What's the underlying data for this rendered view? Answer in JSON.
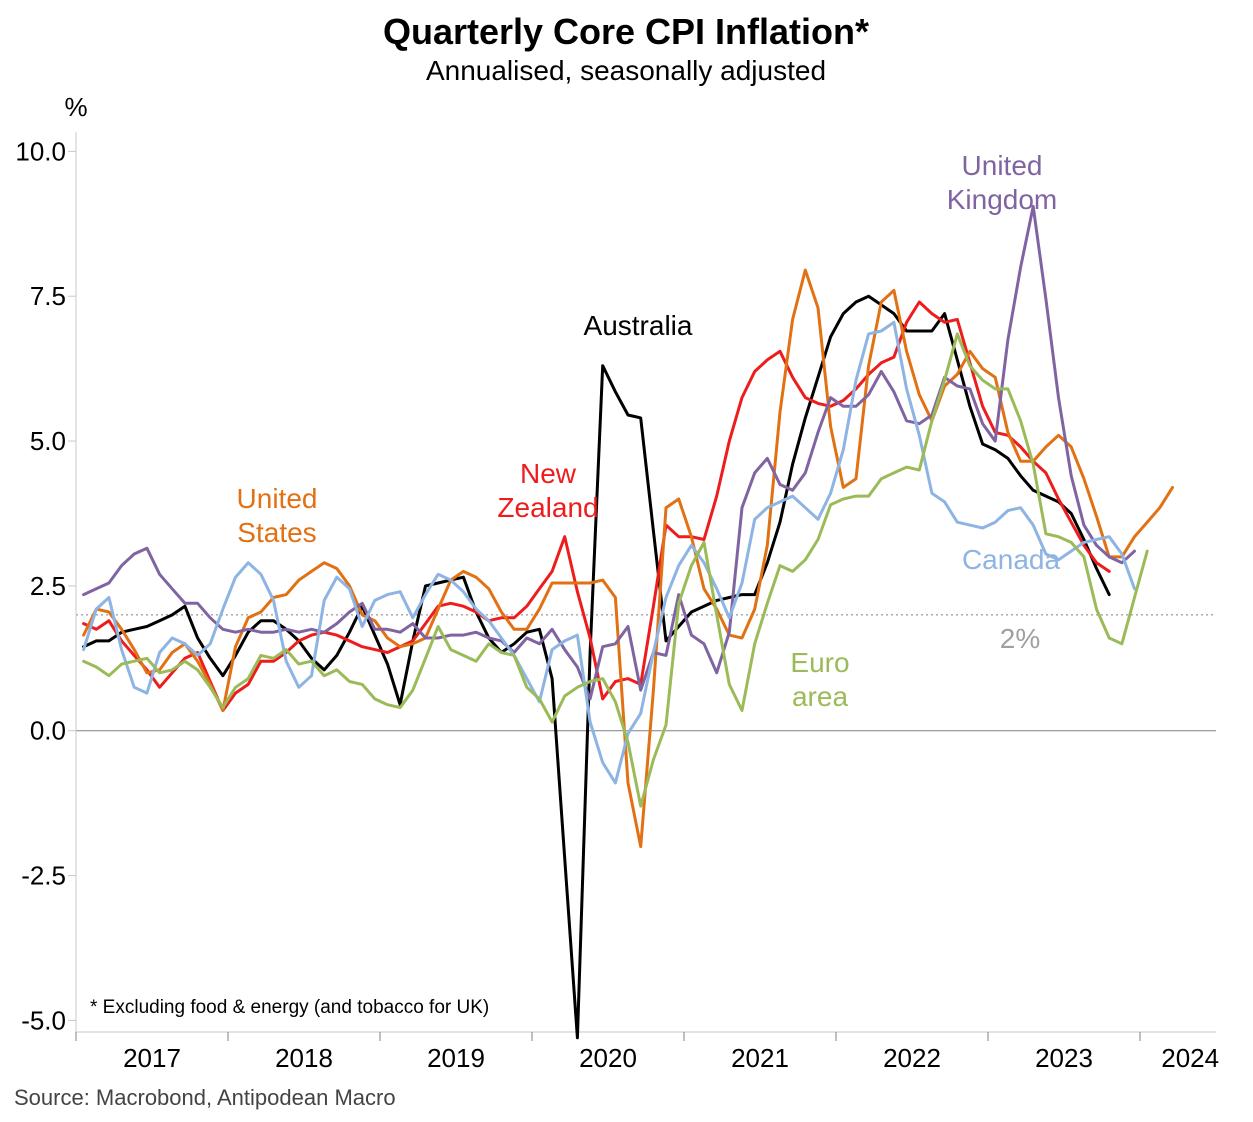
{
  "chart_data": {
    "type": "line",
    "title": "Quarterly Core CPI Inflation*",
    "subtitle": "Annualised, seasonally adjusted",
    "ylabel": "%",
    "ylim": [
      -5.2,
      10.3
    ],
    "yticks": [
      10.0,
      7.5,
      5.0,
      2.5,
      0.0,
      -2.5,
      -5.0
    ],
    "ytick_labels": [
      "10.0",
      "7.5",
      "5.0",
      "2.5",
      "0.0",
      "-2.5",
      "-5.0"
    ],
    "xlim": [
      2016.5,
      2024.0
    ],
    "x_tick_labels": [
      "2017",
      "2018",
      "2019",
      "2020",
      "2021",
      "2022",
      "2023",
      "2024"
    ],
    "x_tick_label_positions": [
      2017.0,
      2018.0,
      2019.0,
      2020.0,
      2021.0,
      2022.0,
      2023.0,
      2023.83
    ],
    "x_year_boundaries": [
      2016.5,
      2017.5,
      2018.5,
      2019.5,
      2020.5,
      2021.5,
      2022.5,
      2023.5
    ],
    "reference_line": {
      "y": 2.0,
      "label": "2%"
    },
    "footnote": "* Excluding food & energy (and tobacco for UK)",
    "source": "Source: Macrobond, Antipodean Macro",
    "series": [
      {
        "name": "Australia",
        "color": "#000000",
        "x_start": 2016.55,
        "x_step": 0.0833,
        "values": [
          1.45,
          1.55,
          1.55,
          1.7,
          1.75,
          1.8,
          1.9,
          2.0,
          2.15,
          1.6,
          1.25,
          0.95,
          1.3,
          1.7,
          1.9,
          1.9,
          1.75,
          1.55,
          1.25,
          1.05,
          1.3,
          1.7,
          2.15,
          1.65,
          1.15,
          0.45,
          1.55,
          2.5,
          2.55,
          2.6,
          2.65,
          2.05,
          1.6,
          1.35,
          1.5,
          1.7,
          1.75,
          0.9,
          -2.2,
          -5.3,
          1.35,
          6.3,
          5.85,
          5.45,
          5.4,
          3.45,
          1.55,
          1.8,
          2.05,
          2.15,
          2.25,
          2.3,
          2.35,
          2.35,
          2.9,
          3.6,
          4.6,
          5.4,
          6.1,
          6.8,
          7.2,
          7.4,
          7.5,
          7.35,
          7.2,
          6.9,
          6.9,
          6.9,
          7.2,
          6.4,
          5.6,
          4.95,
          4.85,
          4.7,
          4.4,
          4.15,
          4.05,
          3.95,
          3.75,
          3.3,
          2.8,
          2.35
        ]
      },
      {
        "name": "New Zealand",
        "color": "#ee1c1c",
        "x_start": 2016.55,
        "x_step": 0.0833,
        "values": [
          1.85,
          1.75,
          1.9,
          1.55,
          1.3,
          1.05,
          0.75,
          1.0,
          1.25,
          1.35,
          0.85,
          0.35,
          0.65,
          0.8,
          1.2,
          1.2,
          1.35,
          1.55,
          1.65,
          1.7,
          1.65,
          1.55,
          1.45,
          1.4,
          1.35,
          1.45,
          1.55,
          1.85,
          2.15,
          2.2,
          2.15,
          2.05,
          1.9,
          1.95,
          1.95,
          2.15,
          2.45,
          2.75,
          3.35,
          2.4,
          1.6,
          0.55,
          0.85,
          0.9,
          0.8,
          2.15,
          3.55,
          3.35,
          3.35,
          3.3,
          4.05,
          5.0,
          5.75,
          6.2,
          6.4,
          6.55,
          6.1,
          5.75,
          5.65,
          5.6,
          5.7,
          5.9,
          6.15,
          6.35,
          6.45,
          7.05,
          7.4,
          7.2,
          7.05,
          7.1,
          6.35,
          5.6,
          5.15,
          5.1,
          4.9,
          4.65,
          4.45,
          4.0,
          3.6,
          3.2,
          2.9,
          2.75
        ]
      },
      {
        "name": "United States",
        "color": "#e27114",
        "x_start": 2016.55,
        "x_step": 0.0833,
        "values": [
          1.65,
          2.1,
          2.05,
          1.75,
          1.4,
          1.0,
          1.05,
          1.35,
          1.5,
          1.2,
          0.8,
          0.35,
          1.45,
          1.95,
          2.05,
          2.3,
          2.35,
          2.6,
          2.75,
          2.9,
          2.8,
          2.5,
          2.0,
          1.9,
          1.6,
          1.45,
          1.5,
          1.6,
          2.1,
          2.6,
          2.75,
          2.65,
          2.45,
          2.05,
          1.75,
          1.75,
          2.1,
          2.55,
          2.55,
          2.55,
          2.55,
          2.6,
          2.3,
          -0.9,
          -2.0,
          0.7,
          3.85,
          4.0,
          3.35,
          2.45,
          2.1,
          1.65,
          1.6,
          2.1,
          3.2,
          5.5,
          7.1,
          7.95,
          7.3,
          5.25,
          4.2,
          4.35,
          6.3,
          7.4,
          7.6,
          6.55,
          5.8,
          5.35,
          5.95,
          6.15,
          6.55,
          6.25,
          6.1,
          5.15,
          4.65,
          4.65,
          4.9,
          5.1,
          4.9,
          4.35,
          3.7,
          3.0,
          3.0,
          3.35,
          3.6,
          3.85,
          4.2
        ]
      },
      {
        "name": "United Kingdom",
        "color": "#8064a2",
        "x_start": 2016.55,
        "x_step": 0.0833,
        "values": [
          2.35,
          2.45,
          2.55,
          2.85,
          3.05,
          3.15,
          2.7,
          2.45,
          2.2,
          2.2,
          1.95,
          1.75,
          1.7,
          1.75,
          1.7,
          1.7,
          1.75,
          1.7,
          1.75,
          1.7,
          1.85,
          2.05,
          2.2,
          1.75,
          1.75,
          1.7,
          1.85,
          1.6,
          1.6,
          1.65,
          1.65,
          1.7,
          1.6,
          1.55,
          1.35,
          1.6,
          1.5,
          1.75,
          1.4,
          1.1,
          0.55,
          1.45,
          1.5,
          1.8,
          0.7,
          1.35,
          1.3,
          2.35,
          1.65,
          1.5,
          1.0,
          1.7,
          3.85,
          4.45,
          4.7,
          4.25,
          4.15,
          4.45,
          5.15,
          5.75,
          5.6,
          5.6,
          5.8,
          6.2,
          5.85,
          5.35,
          5.3,
          5.45,
          6.1,
          5.95,
          5.9,
          5.3,
          5.0,
          6.75,
          8.0,
          9.05,
          7.45,
          5.75,
          4.4,
          3.55,
          3.2,
          3.0,
          2.9,
          3.1
        ]
      },
      {
        "name": "Canada",
        "color": "#8db4e2",
        "x_start": 2016.55,
        "x_step": 0.0833,
        "values": [
          1.4,
          2.1,
          2.3,
          1.4,
          0.75,
          0.65,
          1.35,
          1.6,
          1.5,
          1.3,
          1.5,
          2.1,
          2.65,
          2.9,
          2.7,
          2.25,
          1.2,
          0.75,
          0.95,
          2.25,
          2.65,
          2.45,
          1.8,
          2.25,
          2.35,
          2.4,
          1.95,
          2.35,
          2.7,
          2.6,
          2.4,
          2.1,
          1.9,
          1.6,
          1.3,
          0.9,
          0.5,
          1.4,
          1.55,
          1.65,
          0.15,
          -0.55,
          -0.9,
          -0.05,
          0.3,
          1.35,
          2.3,
          2.85,
          3.2,
          2.9,
          2.45,
          1.95,
          2.55,
          3.65,
          3.85,
          3.95,
          4.05,
          3.85,
          3.65,
          4.1,
          4.85,
          6.05,
          6.85,
          6.9,
          7.05,
          5.9,
          5.1,
          4.1,
          3.95,
          3.6,
          3.55,
          3.5,
          3.6,
          3.8,
          3.85,
          3.55,
          3.05,
          2.95,
          3.1,
          3.25,
          3.3,
          3.35,
          3.05,
          2.45
        ]
      },
      {
        "name": "Euro area",
        "color": "#9bbb59",
        "x_start": 2016.55,
        "x_step": 0.0833,
        "values": [
          1.2,
          1.1,
          0.95,
          1.15,
          1.2,
          1.25,
          1.0,
          1.05,
          1.2,
          1.05,
          0.75,
          0.4,
          0.75,
          0.9,
          1.3,
          1.25,
          1.4,
          1.15,
          1.2,
          0.95,
          1.05,
          0.85,
          0.8,
          0.55,
          0.45,
          0.4,
          0.7,
          1.25,
          1.8,
          1.4,
          1.3,
          1.2,
          1.5,
          1.35,
          1.3,
          0.75,
          0.55,
          0.15,
          0.6,
          0.75,
          0.85,
          0.9,
          0.5,
          -0.2,
          -1.3,
          -0.5,
          0.1,
          2.2,
          2.85,
          3.25,
          2.0,
          0.8,
          0.35,
          1.5,
          2.2,
          2.85,
          2.75,
          2.95,
          3.3,
          3.9,
          4.0,
          4.05,
          4.05,
          4.35,
          4.45,
          4.55,
          4.5,
          5.35,
          6.05,
          6.85,
          6.3,
          6.05,
          5.9,
          5.9,
          5.35,
          4.6,
          3.4,
          3.35,
          3.25,
          3.0,
          2.1,
          1.6,
          1.5,
          2.3,
          3.1
        ]
      }
    ],
    "series_labels": [
      {
        "series": "United States",
        "lines": [
          "United",
          "States"
        ]
      },
      {
        "series": "New Zealand",
        "lines": [
          "New",
          "Zealand"
        ]
      },
      {
        "series": "Australia",
        "lines": [
          "Australia"
        ]
      },
      {
        "series": "United Kingdom",
        "lines": [
          "United",
          "Kingdom"
        ]
      },
      {
        "series": "Canada",
        "lines": [
          "Canada"
        ]
      },
      {
        "series": "Euro area",
        "lines": [
          "Euro",
          "area"
        ]
      }
    ]
  }
}
